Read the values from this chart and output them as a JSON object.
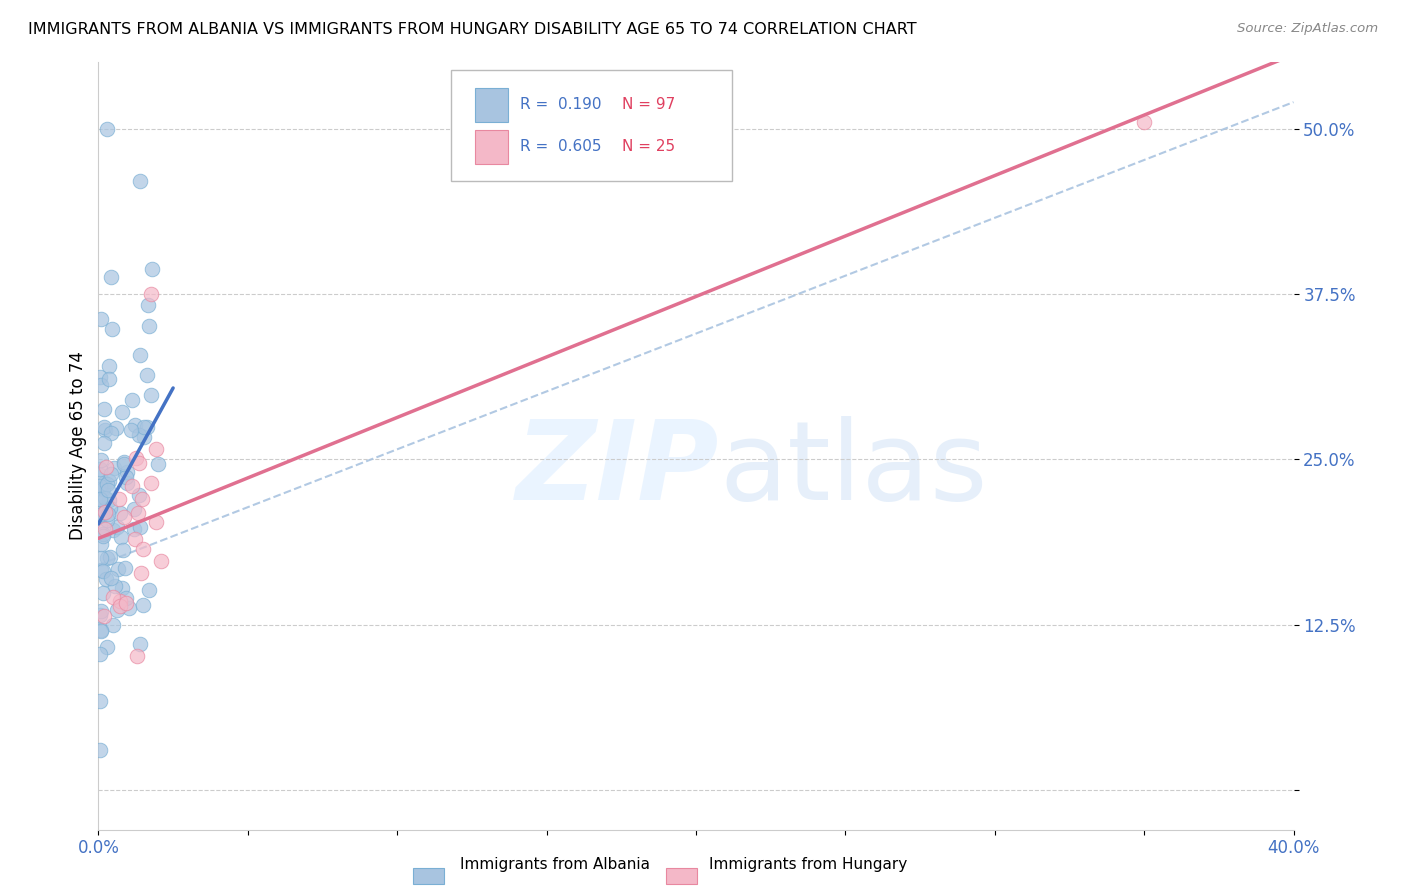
{
  "title": "IMMIGRANTS FROM ALBANIA VS IMMIGRANTS FROM HUNGARY DISABILITY AGE 65 TO 74 CORRELATION CHART",
  "source": "Source: ZipAtlas.com",
  "ylabel": "Disability Age 65 to 74",
  "xlim": [
    0.0,
    0.4
  ],
  "ylim": [
    -0.03,
    0.55
  ],
  "albania_color": "#a8c4e0",
  "albania_edge": "#7aafd4",
  "hungary_color": "#f4b8c8",
  "hungary_edge": "#e888a0",
  "albania_line_color": "#4472c4",
  "hungary_line_color": "#e07090",
  "dashed_line_color": "#aac4e0",
  "albania_R": 0.19,
  "albania_N": 97,
  "hungary_R": 0.605,
  "hungary_N": 25
}
